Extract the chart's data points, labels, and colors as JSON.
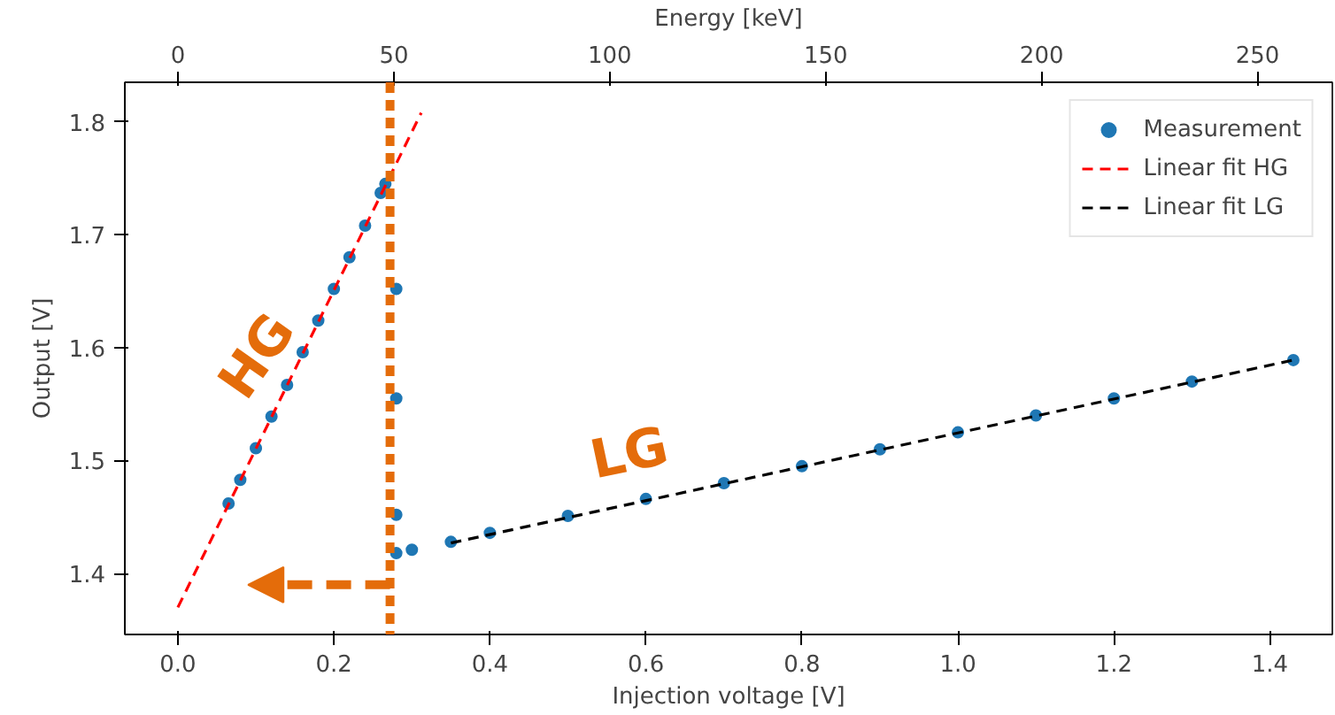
{
  "chart_data": {
    "type": "scatter",
    "xlabel": "Injection voltage [V]",
    "ylabel": "Output [V]",
    "x2label": "Energy [keV]",
    "xlim": [
      -0.068,
      1.48
    ],
    "xticks": [
      {
        "value": 0.0,
        "label": "0.0"
      },
      0.2,
      0.4,
      0.6,
      0.8,
      {
        "value": 1.0,
        "label": "1.0"
      },
      1.2,
      1.4
    ],
    "ylim": [
      1.346,
      1.835
    ],
    "yticks": [
      1.4,
      1.5,
      1.6,
      1.7,
      1.8
    ],
    "x2lim": [
      -12.3,
      267.3
    ],
    "x2ticks": [
      0,
      50,
      100,
      150,
      200,
      250
    ],
    "grid": false,
    "legend": "top right",
    "series": [
      {
        "name": "Measurement",
        "marker": "circle",
        "color": "#1f77b4",
        "x": [
          0.065,
          0.08,
          0.1,
          0.12,
          0.14,
          0.16,
          0.18,
          0.2,
          0.22,
          0.24,
          0.26,
          0.266,
          0.28,
          0.28,
          0.28,
          0.28,
          0.3,
          0.35,
          0.4,
          0.5,
          0.6,
          0.7,
          0.8,
          0.9,
          1.0,
          1.1,
          1.2,
          1.3,
          1.43
        ],
        "values": [
          1.462,
          1.483,
          1.511,
          1.539,
          1.567,
          1.596,
          1.624,
          1.652,
          1.68,
          1.708,
          1.737,
          1.745,
          1.652,
          1.555,
          1.452,
          1.418,
          1.421,
          1.428,
          1.436,
          1.451,
          1.466,
          1.48,
          1.495,
          1.51,
          1.525,
          1.54,
          1.555,
          1.57,
          1.589
        ]
      },
      {
        "name": "Linear fit HG",
        "type": "line",
        "line_style": "dashed",
        "color": "#ff0000",
        "x": [
          0.0,
          0.312
        ],
        "values": [
          1.37,
          1.808
        ]
      },
      {
        "name": "Linear fit LG",
        "type": "line",
        "line_style": "dashed",
        "color": "#000000",
        "x": [
          0.35,
          1.43
        ],
        "values": [
          1.427,
          1.589
        ]
      }
    ],
    "ref_lines": [
      {
        "axis": "x",
        "value": 0.272,
        "color": "#e46c0a",
        "line_style": "dashed"
      }
    ],
    "annotations": [
      "HG",
      "LG"
    ]
  }
}
